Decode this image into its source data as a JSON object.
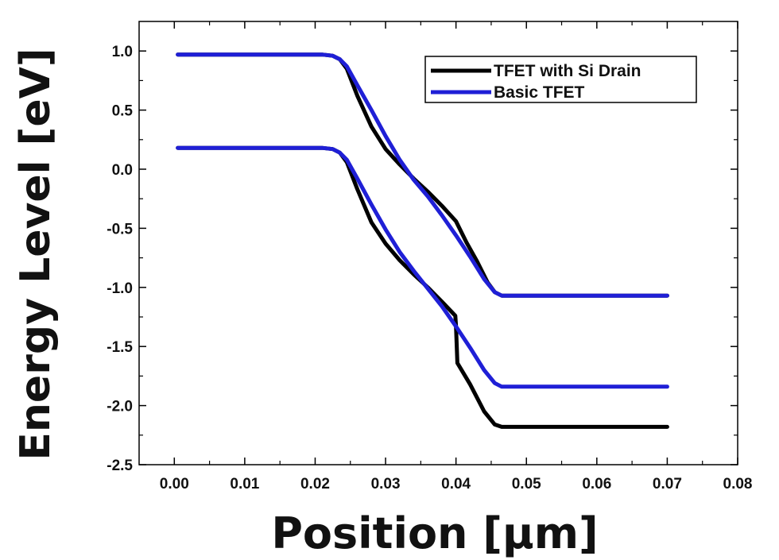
{
  "chart_data": {
    "type": "line",
    "xlabel": "Position [μm]",
    "ylabel": "Energy Level [eV]",
    "xlim": [
      -0.005,
      0.08
    ],
    "ylim": [
      -2.5,
      1.25
    ],
    "x_ticks": [
      "0.00",
      "0.01",
      "0.02",
      "0.03",
      "0.04",
      "0.05",
      "0.06",
      "0.07",
      "0.08"
    ],
    "y_ticks": [
      "1.0",
      "0.5",
      "0.0",
      "-0.5",
      "-1.0",
      "-1.5",
      "-2.0",
      "-2.5"
    ],
    "grid": false,
    "legend_position": "top-right",
    "legend": [
      {
        "label": "TFET with Si Drain",
        "color": "#000000"
      },
      {
        "label": "Basic TFET",
        "color": "#1f1fd6"
      }
    ],
    "series": [
      {
        "name": "TFET with Si Drain",
        "band": "conduction",
        "color": "#000000",
        "x": [
          0.0005,
          0.021,
          0.0225,
          0.0235,
          0.0245,
          0.026,
          0.028,
          0.03,
          0.032,
          0.034,
          0.036,
          0.038,
          0.04,
          0.0415,
          0.043,
          0.0445,
          0.0455,
          0.0465,
          0.048,
          0.055,
          0.07
        ],
        "y": [
          0.97,
          0.97,
          0.96,
          0.93,
          0.85,
          0.62,
          0.36,
          0.17,
          0.04,
          -0.08,
          -0.19,
          -0.31,
          -0.44,
          -0.62,
          -0.78,
          -0.96,
          -1.04,
          -1.07,
          -1.07,
          -1.07,
          -1.07
        ]
      },
      {
        "name": "TFET with Si Drain",
        "band": "valence",
        "color": "#000000",
        "x": [
          0.0005,
          0.021,
          0.0225,
          0.0235,
          0.0245,
          0.026,
          0.028,
          0.03,
          0.032,
          0.034,
          0.036,
          0.038,
          0.0399,
          0.04,
          0.0402,
          0.042,
          0.044,
          0.0455,
          0.0465,
          0.048,
          0.055,
          0.07
        ],
        "y": [
          0.18,
          0.18,
          0.17,
          0.14,
          0.06,
          -0.17,
          -0.45,
          -0.63,
          -0.77,
          -0.89,
          -1.0,
          -1.12,
          -1.24,
          -1.32,
          -1.64,
          -1.82,
          -2.05,
          -2.16,
          -2.18,
          -2.18,
          -2.18,
          -2.18
        ]
      },
      {
        "name": "Basic TFET",
        "band": "conduction",
        "color": "#1f1fd6",
        "x": [
          0.0005,
          0.021,
          0.0225,
          0.0235,
          0.0245,
          0.026,
          0.028,
          0.03,
          0.032,
          0.034,
          0.036,
          0.038,
          0.04,
          0.042,
          0.044,
          0.0455,
          0.0465,
          0.048,
          0.055,
          0.07
        ],
        "y": [
          0.97,
          0.97,
          0.96,
          0.93,
          0.87,
          0.71,
          0.5,
          0.28,
          0.08,
          -0.09,
          -0.23,
          -0.39,
          -0.56,
          -0.74,
          -0.93,
          -1.04,
          -1.07,
          -1.07,
          -1.07,
          -1.07
        ]
      },
      {
        "name": "Basic TFET",
        "band": "valence",
        "color": "#1f1fd6",
        "x": [
          0.0005,
          0.021,
          0.0225,
          0.0235,
          0.0245,
          0.026,
          0.028,
          0.03,
          0.032,
          0.034,
          0.036,
          0.038,
          0.04,
          0.042,
          0.044,
          0.0455,
          0.0465,
          0.048,
          0.055,
          0.07
        ],
        "y": [
          0.18,
          0.18,
          0.17,
          0.14,
          0.08,
          -0.08,
          -0.3,
          -0.51,
          -0.7,
          -0.86,
          -1.01,
          -1.16,
          -1.33,
          -1.51,
          -1.7,
          -1.81,
          -1.84,
          -1.84,
          -1.84,
          -1.84
        ]
      }
    ]
  }
}
